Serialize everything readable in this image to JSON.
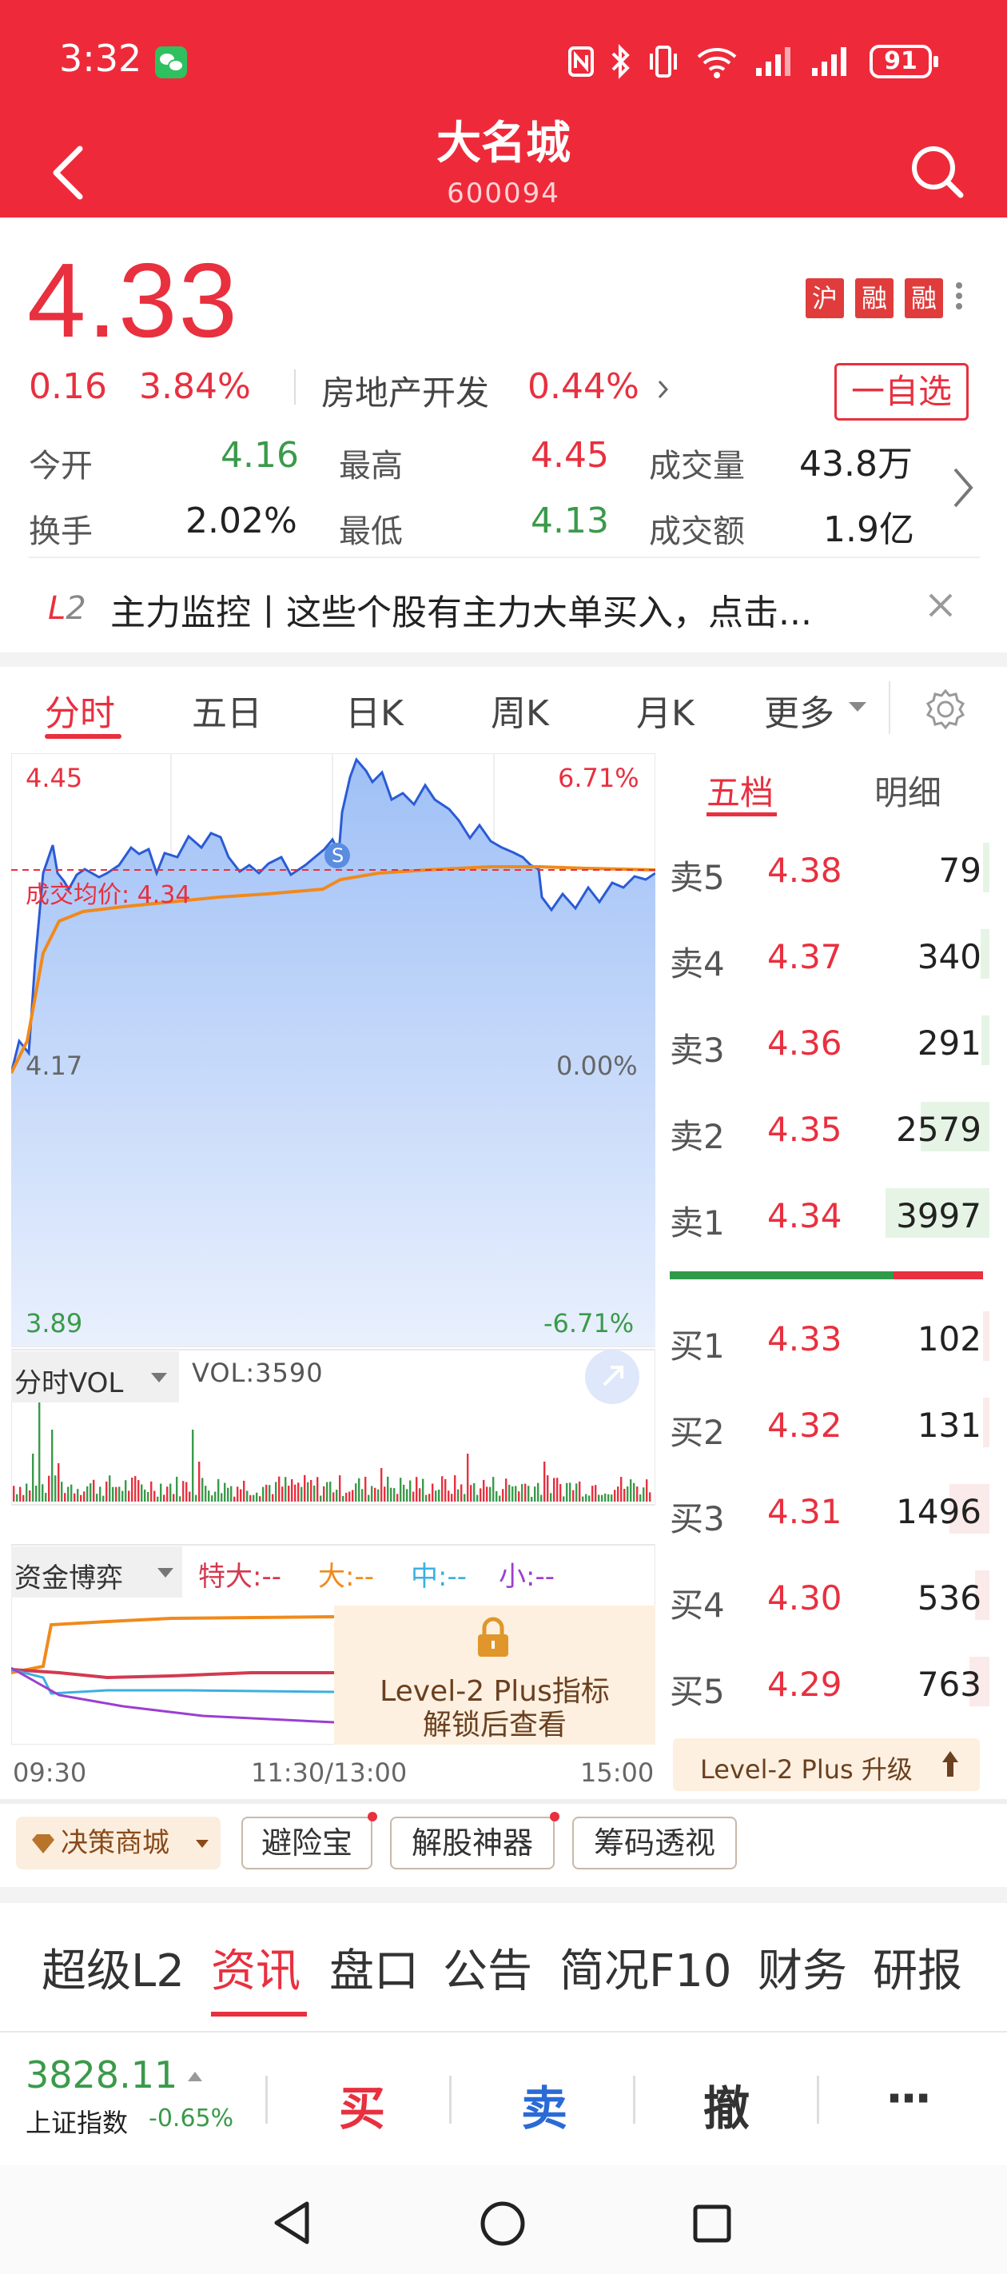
{
  "status": {
    "time": "3:32",
    "battery": "91"
  },
  "header": {
    "title": "大名城",
    "code": "600094"
  },
  "quote": {
    "price": "4.33",
    "change": "0.16",
    "change_pct": "3.84%",
    "sector": "房地产开发",
    "sector_pct": "0.44%",
    "badges": [
      "沪",
      "融",
      "融"
    ],
    "fav_label": "一自选",
    "stats": [
      {
        "label": "今开",
        "value": "4.16"
      },
      {
        "label": "最高",
        "value": "4.45"
      },
      {
        "label": "成交量",
        "value": "43.8万"
      },
      {
        "label": "换手",
        "value": "2.02%"
      },
      {
        "label": "最低",
        "value": "4.13"
      },
      {
        "label": "成交额",
        "value": "1.9亿"
      }
    ]
  },
  "banner": {
    "tag": "L2",
    "text": "主力监控丨这些个股有主力大单买入，点击..."
  },
  "ktabs": [
    "分时",
    "五日",
    "日K",
    "周K",
    "月K",
    "更多"
  ],
  "chart": {
    "top_left": "4.45",
    "top_right": "6.71%",
    "mid_left": "4.17",
    "mid_right": "0.00%",
    "bot_left": "3.89",
    "bot_right": "-6.71%",
    "avg_label": "成交均价: 4.34",
    "vol_title": "分时VOL",
    "vol_value": "VOL:3590",
    "fund_title": "资金博弈",
    "fund_legend": [
      "特大:--",
      "大:--",
      "中:--",
      "小:--"
    ],
    "lock_text1": "Level-2 Plus指标",
    "lock_text2": "解锁后查看",
    "times": [
      "09:30",
      "11:30/13:00",
      "15:00"
    ],
    "marker": "S"
  },
  "chart_data": {
    "type": "line",
    "x": [
      "09:30",
      "11:30/13:00",
      "15:00"
    ],
    "ylim": [
      3.89,
      4.45
    ],
    "series": []
  },
  "orderbook": {
    "tabs": [
      "五档",
      "明细"
    ],
    "asks": [
      {
        "name": "卖5",
        "price": "4.38",
        "vol": "79"
      },
      {
        "name": "卖4",
        "price": "4.37",
        "vol": "340"
      },
      {
        "name": "卖3",
        "price": "4.36",
        "vol": "291"
      },
      {
        "name": "卖2",
        "price": "4.35",
        "vol": "2579"
      },
      {
        "name": "卖1",
        "price": "4.34",
        "vol": "3997"
      }
    ],
    "bids": [
      {
        "name": "买1",
        "price": "4.33",
        "vol": "102"
      },
      {
        "name": "买2",
        "price": "4.32",
        "vol": "131"
      },
      {
        "name": "买3",
        "price": "4.31",
        "vol": "1496"
      },
      {
        "name": "买4",
        "price": "4.30",
        "vol": "536"
      },
      {
        "name": "买5",
        "price": "4.29",
        "vol": "763"
      }
    ],
    "upgrade": "Level-2 Plus 升级"
  },
  "tools": [
    "决策商城",
    "避险宝",
    "解股神器",
    "筹码透视"
  ],
  "bottom_tabs": [
    "超级L2",
    "资讯",
    "盘口",
    "公告",
    "简况F10",
    "财务",
    "研报"
  ],
  "index": {
    "value": "3828.11",
    "name": "上证指数",
    "pct": "-0.65%"
  },
  "trade": {
    "buy": "买",
    "sell": "卖",
    "cancel": "撤",
    "more": "···"
  }
}
